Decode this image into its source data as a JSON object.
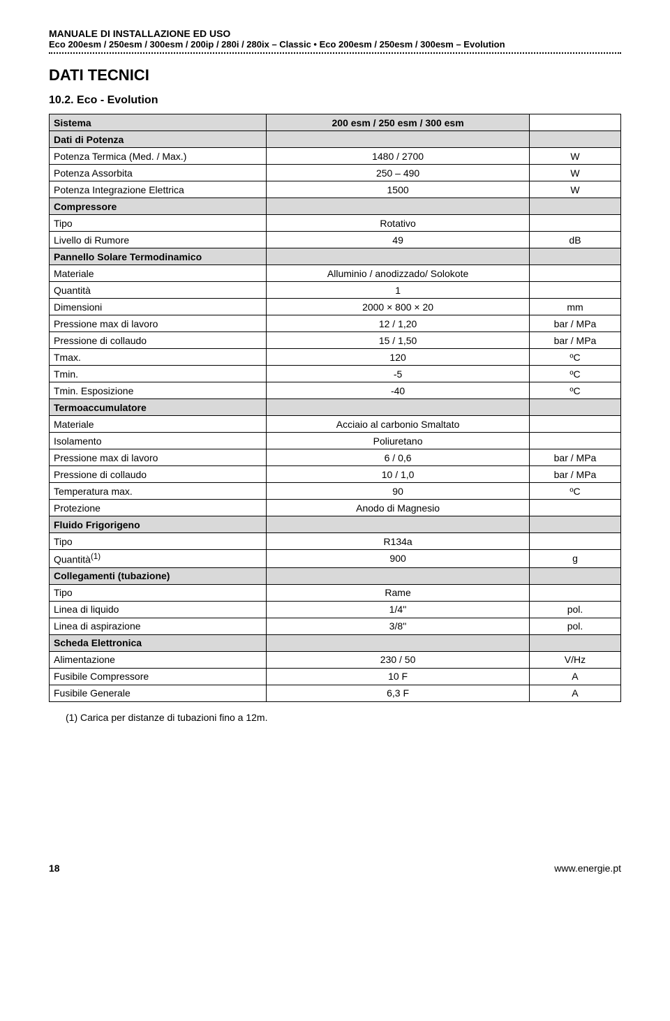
{
  "header": {
    "line1": "MANUALE DI INSTALLAZIONE ED USO",
    "line2": "Eco 200esm / 250esm / 300esm / 200ip / 280i / 280ix – Classic  •  Eco 200esm / 250esm / 300esm – Evolution"
  },
  "section_title": "DATI TECNICI",
  "sub_heading": "10.2.      Eco - Evolution",
  "table": {
    "header_row": {
      "label": "Sistema",
      "value": "200 esm / 250 esm / 300 esm"
    },
    "rows": [
      {
        "type": "group",
        "label": "Dati di Potenza"
      },
      {
        "type": "data",
        "label": "Potenza Termica (Med. / Max.)",
        "value": "1480 / 2700",
        "unit": "W"
      },
      {
        "type": "data",
        "label": "Potenza Assorbita",
        "value": "250 – 490",
        "unit": "W"
      },
      {
        "type": "data",
        "label": "Potenza Integrazione Elettrica",
        "value": "1500",
        "unit": "W"
      },
      {
        "type": "group",
        "label": "Compressore"
      },
      {
        "type": "data",
        "label": "Tipo",
        "value": "Rotativo",
        "unit": ""
      },
      {
        "type": "data",
        "label": "Livello di Rumore",
        "value": "49",
        "unit": "dB"
      },
      {
        "type": "group",
        "label": "Pannello Solare Termodinamico"
      },
      {
        "type": "data",
        "label": "Materiale",
        "value": "Alluminio / anodizzado/ Solokote",
        "unit": ""
      },
      {
        "type": "data",
        "label": "Quantità",
        "value": "1",
        "unit": ""
      },
      {
        "type": "data",
        "label": "Dimensioni",
        "value": "2000 × 800 × 20",
        "unit": "mm"
      },
      {
        "type": "data",
        "label": "Pressione max di lavoro",
        "value": "12 / 1,20",
        "unit": "bar / MPa"
      },
      {
        "type": "data",
        "label": "Pressione di collaudo",
        "value": "15 / 1,50",
        "unit": "bar / MPa"
      },
      {
        "type": "data",
        "label": "Tmax.",
        "value": "120",
        "unit": "ºC"
      },
      {
        "type": "data",
        "label": "Tmin.",
        "value": "-5",
        "unit": "ºC"
      },
      {
        "type": "data",
        "label": "Tmin. Esposizione",
        "value": "-40",
        "unit": "ºC"
      },
      {
        "type": "group",
        "label": "Termoaccumulatore"
      },
      {
        "type": "data",
        "label": "Materiale",
        "value": "Acciaio al carbonio Smaltato",
        "unit": ""
      },
      {
        "type": "data",
        "label": "Isolamento",
        "value": "Poliuretano",
        "unit": ""
      },
      {
        "type": "data",
        "label": "Pressione max di lavoro",
        "value": "6 / 0,6",
        "unit": "bar / MPa"
      },
      {
        "type": "data",
        "label": "Pressione di collaudo",
        "value": "10 / 1,0",
        "unit": "bar / MPa"
      },
      {
        "type": "data",
        "label": "Temperatura max.",
        "value": "90",
        "unit": "ºC"
      },
      {
        "type": "data",
        "label": "Protezione",
        "value": "Anodo di Magnesio",
        "unit": ""
      },
      {
        "type": "group",
        "label": "Fluido Frigorigeno"
      },
      {
        "type": "data",
        "label": "Tipo",
        "value": "R134a",
        "unit": ""
      },
      {
        "type": "data",
        "label_html": "Quantità<sup>(1)</sup>",
        "value": "900",
        "unit": "g"
      },
      {
        "type": "group",
        "label": "Collegamenti (tubazione)"
      },
      {
        "type": "data",
        "label": "Tipo",
        "value": "Rame",
        "unit": ""
      },
      {
        "type": "data",
        "label": "Linea di liquido",
        "value": "1/4''",
        "unit": "pol."
      },
      {
        "type": "data",
        "label": "Linea di aspirazione",
        "value": "3/8''",
        "unit": "pol."
      },
      {
        "type": "group",
        "label": "Scheda Elettronica"
      },
      {
        "type": "data",
        "label": "Alimentazione",
        "value": "230 / 50",
        "unit": "V/Hz"
      },
      {
        "type": "data",
        "label": "Fusibile Compressore",
        "value": "10 F",
        "unit": "A"
      },
      {
        "type": "data",
        "label": "Fusibile Generale",
        "value": "6,3 F",
        "unit": "A"
      }
    ]
  },
  "footnote": "(1)  Carica per distanze di tubazioni fino a 12m.",
  "footer": {
    "page": "18",
    "url": "www.energie.pt"
  }
}
